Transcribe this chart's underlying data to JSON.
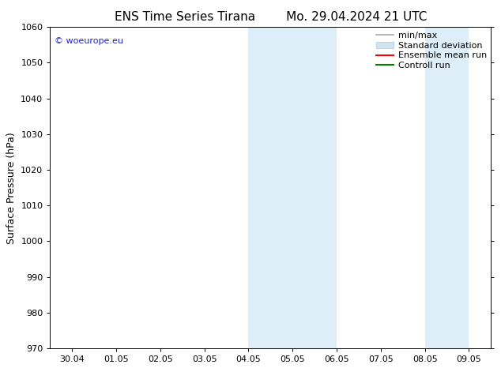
{
  "title_left": "ENS Time Series Tirana",
  "title_right": "Mo. 29.04.2024 21 UTC",
  "ylabel": "Surface Pressure (hPa)",
  "ylim": [
    970,
    1060
  ],
  "yticks": [
    970,
    980,
    990,
    1000,
    1010,
    1020,
    1030,
    1040,
    1050,
    1060
  ],
  "xlim_start": -0.5,
  "xlim_end": 9.5,
  "xtick_labels": [
    "30.04",
    "01.05",
    "02.05",
    "03.05",
    "04.05",
    "05.05",
    "06.05",
    "07.05",
    "08.05",
    "09.05"
  ],
  "xtick_positions": [
    0,
    1,
    2,
    3,
    4,
    5,
    6,
    7,
    8,
    9
  ],
  "shaded_bands": [
    {
      "x_start": 4.0,
      "x_end": 5.0,
      "color": "#ddeef8"
    },
    {
      "x_start": 5.0,
      "x_end": 6.0,
      "color": "#ddeef8"
    },
    {
      "x_start": 8.0,
      "x_end": 9.0,
      "color": "#ddeef8"
    }
  ],
  "watermark_text": "© woeurope.eu",
  "watermark_color": "#2222cc",
  "bg_color": "#ffffff",
  "plot_bg_color": "#ffffff",
  "legend_items": [
    {
      "label": "min/max",
      "color": "#aaaaaa",
      "lw": 1.2,
      "ls": "-",
      "type": "line"
    },
    {
      "label": "Standard deviation",
      "color": "#d0e4f0",
      "lw": 8,
      "ls": "-",
      "type": "patch"
    },
    {
      "label": "Ensemble mean run",
      "color": "#ff0000",
      "lw": 1.5,
      "ls": "-",
      "type": "line"
    },
    {
      "label": "Controll run",
      "color": "#008000",
      "lw": 1.5,
      "ls": "-",
      "type": "line"
    }
  ],
  "title_fontsize": 11,
  "tick_fontsize": 8,
  "ylabel_fontsize": 9,
  "legend_fontsize": 8
}
